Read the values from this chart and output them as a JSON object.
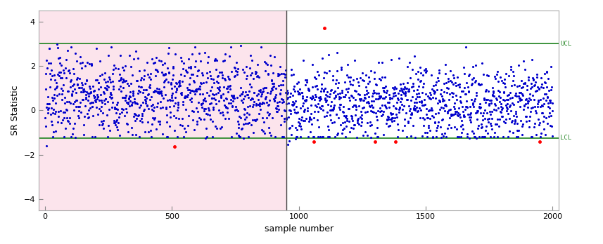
{
  "n_phase1": 950,
  "n_total": 2000,
  "UCL": 3.0,
  "LCL": -1.25,
  "ylim": [
    -4.5,
    4.5
  ],
  "xlim": [
    -25,
    2025
  ],
  "xlabel": "sample number",
  "ylabel": "SR Statistic",
  "phase1_bg_color": "#fce4ec",
  "ucl_color": "#2e8b2e",
  "lcl_color": "#2e8b2e",
  "dot_color_normal": "#0000cc",
  "dot_color_outlier": "#ff0000",
  "vline_color": "#444444",
  "dot_size": 5,
  "yticks": [
    -4,
    -2,
    0,
    2,
    4
  ],
  "xticks": [
    0,
    500,
    1000,
    1500,
    2000
  ],
  "seed": 123
}
